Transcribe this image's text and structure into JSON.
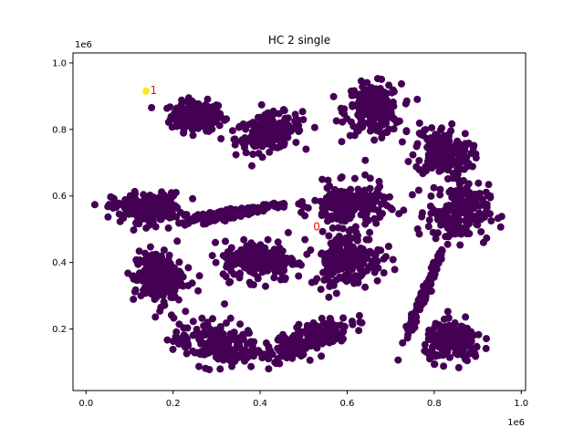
{
  "chart_data": {
    "type": "scatter",
    "title": "HC 2 single",
    "xlabel": "",
    "ylabel": "",
    "x_offset_label": "1e6",
    "y_offset_label": "1e6",
    "xlim": [
      -30000,
      1010000
    ],
    "ylim": [
      15000,
      1030000
    ],
    "x_ticks": [
      0.0,
      0.2,
      0.4,
      0.6,
      0.8,
      1.0
    ],
    "x_tick_labels": [
      "0.0",
      "0.2",
      "0.4",
      "0.6",
      "0.8",
      "1.0"
    ],
    "y_ticks": [
      0.2,
      0.4,
      0.6,
      0.8,
      1.0
    ],
    "y_tick_labels": [
      "0.2",
      "0.4",
      "0.6",
      "0.8",
      "1.0"
    ],
    "grid": false,
    "colors": {
      "cluster_0": "#440154",
      "cluster_1": "#fde725",
      "annotation": "#ff0000"
    },
    "clusters": [
      {
        "label": "0",
        "x": 255000,
        "y": 840000,
        "sx": 30000,
        "sy": 22000,
        "rho": 0.0,
        "n": 200
      },
      {
        "label": "0",
        "x": 420000,
        "y": 790000,
        "sx": 38000,
        "sy": 28000,
        "rho": 0.3,
        "n": 200
      },
      {
        "label": "0",
        "x": 660000,
        "y": 860000,
        "sx": 32000,
        "sy": 38000,
        "rho": 0.0,
        "n": 200
      },
      {
        "label": "0",
        "x": 820000,
        "y": 730000,
        "sx": 32000,
        "sy": 40000,
        "rho": -0.2,
        "n": 200
      },
      {
        "label": "0",
        "x": 140000,
        "y": 565000,
        "sx": 40000,
        "sy": 22000,
        "rho": 0.0,
        "n": 200
      },
      {
        "label": "0",
        "x": 345000,
        "y": 550000,
        "sx": 55000,
        "sy": 14000,
        "rho": 0.9,
        "n": 200
      },
      {
        "label": "0",
        "x": 605000,
        "y": 570000,
        "sx": 42000,
        "sy": 32000,
        "rho": 0.0,
        "n": 200
      },
      {
        "label": "0",
        "x": 855000,
        "y": 550000,
        "sx": 35000,
        "sy": 42000,
        "rho": 0.0,
        "n": 200
      },
      {
        "label": "0",
        "x": 400000,
        "y": 405000,
        "sx": 42000,
        "sy": 30000,
        "rho": 0.0,
        "n": 200
      },
      {
        "label": "0",
        "x": 600000,
        "y": 410000,
        "sx": 40000,
        "sy": 38000,
        "rho": 0.0,
        "n": 200
      },
      {
        "label": "0",
        "x": 165000,
        "y": 355000,
        "sx": 28000,
        "sy": 40000,
        "rho": 0.0,
        "n": 200
      },
      {
        "label": "0",
        "x": 300000,
        "y": 155000,
        "sx": 50000,
        "sy": 35000,
        "rho": -0.2,
        "n": 200
      },
      {
        "label": "0",
        "x": 510000,
        "y": 170000,
        "sx": 48000,
        "sy": 30000,
        "rho": 0.7,
        "n": 200
      },
      {
        "label": "0",
        "x": 780000,
        "y": 315000,
        "sx": 22000,
        "sy": 70000,
        "rho": 0.98,
        "n": 150
      },
      {
        "label": "0",
        "x": 845000,
        "y": 160000,
        "sx": 33000,
        "sy": 28000,
        "rho": 0.0,
        "n": 200
      }
    ],
    "singletons": [
      {
        "label": "1",
        "x": 138000,
        "y": 915000
      }
    ],
    "annotations": [
      {
        "text": "1",
        "x": 145000,
        "y": 918000
      },
      {
        "text": "0",
        "x": 520000,
        "y": 507000
      }
    ]
  }
}
